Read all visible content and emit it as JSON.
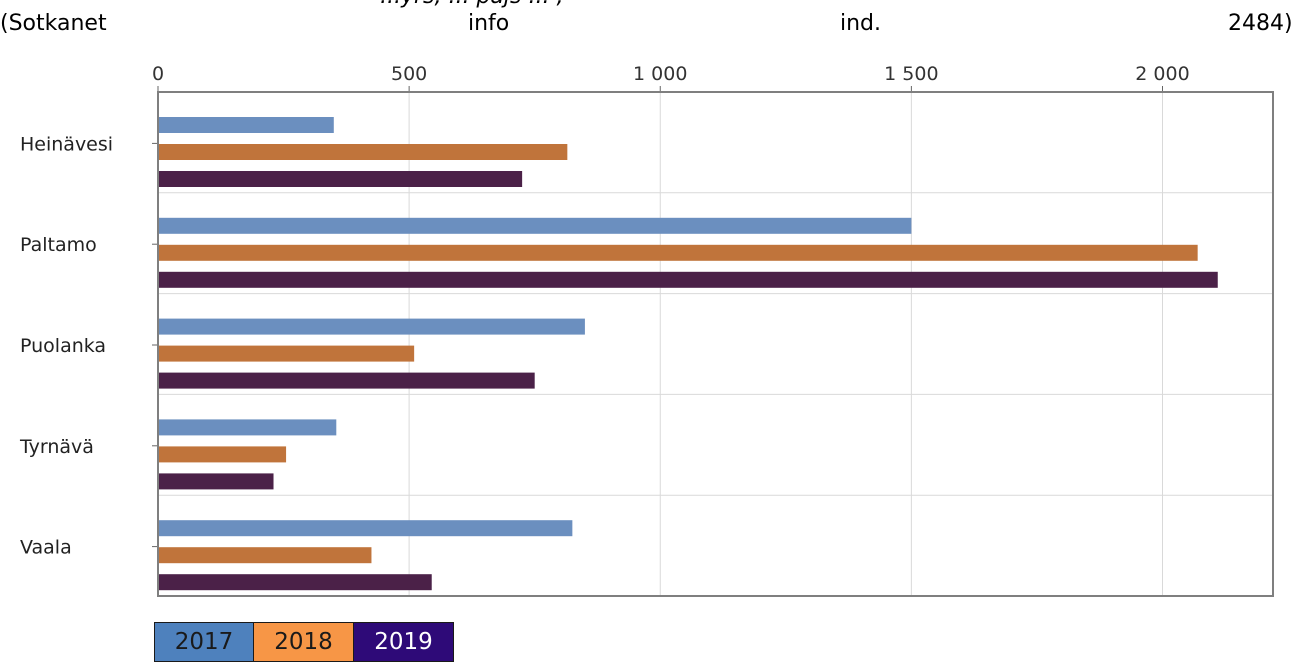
{
  "caption": {
    "top_fragment": "...yrs, ... pajs ... ,",
    "left": "(Sotkanet",
    "middle": "info",
    "right_mid": "ind.",
    "right": "2484)"
  },
  "chart_data": {
    "type": "bar",
    "orientation": "horizontal",
    "categories": [
      "Heinävesi",
      "Paltamo",
      "Puolanka",
      "Tyrnävä",
      "Vaala"
    ],
    "series": [
      {
        "name": "2017",
        "color": "#6b8fbf",
        "values": [
          350,
          1500,
          850,
          355,
          825
        ]
      },
      {
        "name": "2018",
        "color": "#c0743b",
        "values": [
          815,
          2070,
          510,
          255,
          425
        ]
      },
      {
        "name": "2019",
        "color": "#4b2148",
        "values": [
          725,
          2110,
          750,
          230,
          545
        ]
      }
    ],
    "xlim": [
      0,
      2220
    ],
    "xticks": [
      0,
      500,
      1000,
      1500,
      2000
    ],
    "xtick_labels": [
      "0",
      "500",
      "1 000",
      "1 500",
      "2 000"
    ],
    "grid": true,
    "legend_position": "bottom-left"
  },
  "legend": [
    {
      "label": "2017",
      "bg": "#4e81bd",
      "fg": "#1a1a1a"
    },
    {
      "label": "2018",
      "bg": "#f79646",
      "fg": "#1a1a1a"
    },
    {
      "label": "2019",
      "bg": "#2e0a78",
      "fg": "#ffffff"
    }
  ]
}
